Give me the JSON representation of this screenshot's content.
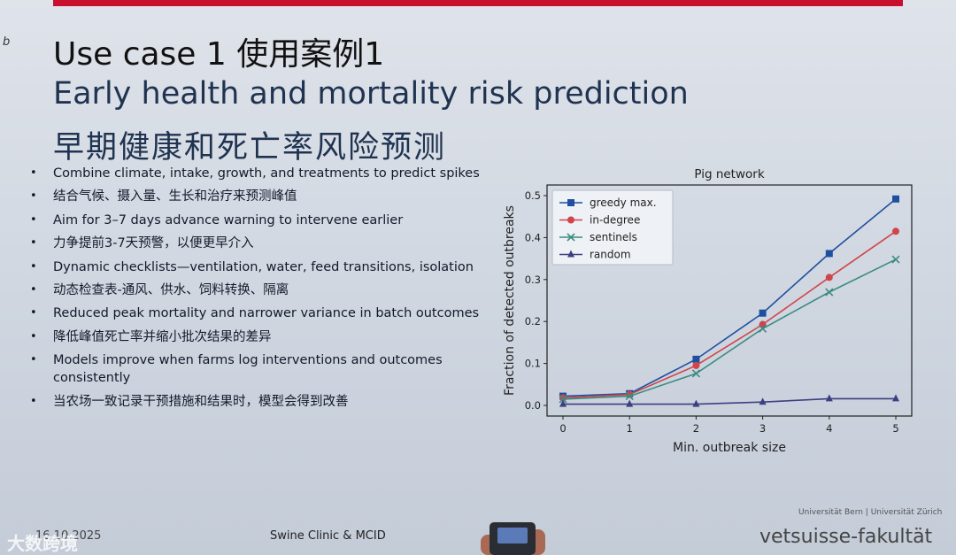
{
  "edge_mark": "b",
  "title_line1": "Use case 1 使用案例1",
  "title_line2": "Early health and mortality risk prediction",
  "title_line3": "早期健康和死亡率风险预测",
  "bullets": [
    "Combine climate, intake, growth, and treatments to predict spikes",
    "结合气候、摄入量、生长和治疗来预测峰值",
    "Aim for 3–7 days advance warning to intervene earlier",
    "力争提前3-7天预警，以便更早介入",
    "Dynamic checklists—ventilation, water, feed transitions, isolation",
    "动态检查表-通风、供水、饲料转换、隔离",
    "Reduced peak mortality and narrower variance in batch outcomes",
    "降低峰值死亡率并缩小批次结果的差异",
    "Models improve when farms log interventions and outcomes consistently",
    "当农场一致记录干预措施和结果时，模型会得到改善"
  ],
  "footer_left": "16.10.2025",
  "footer_mid": "Swine Clinic & MCID",
  "uni_text": "Universität Bern | Universität Zürich",
  "faculty": "vetsuisse-fakultät",
  "watermark": "大数跨境",
  "chart_data": {
    "type": "line",
    "title": "Pig network",
    "xlabel": "Min. outbreak size",
    "ylabel": "Fraction of detected outbreaks",
    "x": [
      0,
      1,
      2,
      3,
      4,
      5
    ],
    "xlim": [
      0,
      5
    ],
    "ylim": [
      0,
      0.5
    ],
    "xticks": [
      "0",
      "1",
      "2",
      "3",
      "4",
      "5"
    ],
    "yticks": [
      "0.0",
      "0.1",
      "0.2",
      "0.3",
      "0.4",
      "0.5"
    ],
    "legend_position": "top-left",
    "series": [
      {
        "name": "greedy max.",
        "values": [
          0.022,
          0.028,
          0.11,
          0.22,
          0.362,
          0.492
        ],
        "color": "#1f4fa0",
        "marker": "square"
      },
      {
        "name": "in-degree",
        "values": [
          0.018,
          0.026,
          0.095,
          0.193,
          0.305,
          0.415
        ],
        "color": "#d0454a",
        "marker": "circle"
      },
      {
        "name": "sentinels",
        "values": [
          0.015,
          0.022,
          0.076,
          0.183,
          0.27,
          0.348
        ],
        "color": "#3a8c82",
        "marker": "x"
      },
      {
        "name": "random",
        "values": [
          0.003,
          0.003,
          0.003,
          0.008,
          0.016,
          0.016
        ],
        "color": "#3d3f80",
        "marker": "triangle"
      }
    ]
  }
}
